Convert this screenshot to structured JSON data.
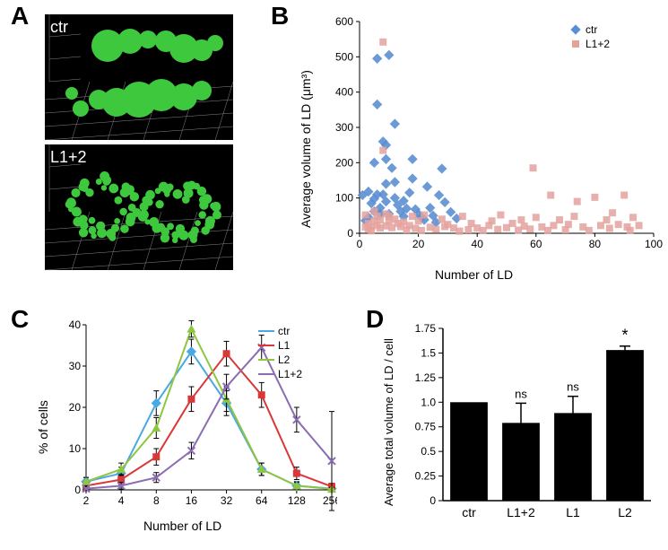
{
  "panelA": {
    "label": "A",
    "images": [
      {
        "label": "ctr"
      },
      {
        "label": "L1+2"
      }
    ]
  },
  "panelB": {
    "label": "B",
    "type": "scatter",
    "xlabel": "Number of LD",
    "ylabel": "Average volume of LD (μm³)",
    "xlim": [
      0,
      100
    ],
    "xtick_step": 20,
    "ylim": [
      0,
      600
    ],
    "ytick_step": 100,
    "background_color": "#ffffff",
    "series": [
      {
        "name": "ctr",
        "marker": "diamond",
        "color": "#5b8fd1",
        "size": 7,
        "points": [
          [
            1,
            108
          ],
          [
            2,
            36
          ],
          [
            3,
            118
          ],
          [
            3,
            45
          ],
          [
            4,
            85
          ],
          [
            5,
            62
          ],
          [
            5,
            200
          ],
          [
            5,
            98
          ],
          [
            6,
            495
          ],
          [
            6,
            110
          ],
          [
            6,
            365
          ],
          [
            7,
            72
          ],
          [
            7,
            55
          ],
          [
            8,
            110
          ],
          [
            8,
            260
          ],
          [
            9,
            90
          ],
          [
            9,
            140
          ],
          [
            9,
            250
          ],
          [
            9,
            210
          ],
          [
            10,
            505
          ],
          [
            10,
            55
          ],
          [
            11,
            185
          ],
          [
            12,
            145
          ],
          [
            12,
            310
          ],
          [
            12,
            100
          ],
          [
            13,
            80
          ],
          [
            14,
            62
          ],
          [
            15,
            48
          ],
          [
            15,
            92
          ],
          [
            16,
            70
          ],
          [
            17,
            115
          ],
          [
            18,
            210
          ],
          [
            18,
            155
          ],
          [
            19,
            68
          ],
          [
            20,
            55
          ],
          [
            21,
            45
          ],
          [
            22,
            38
          ],
          [
            23,
            132
          ],
          [
            24,
            72
          ],
          [
            25,
            50
          ],
          [
            26,
            31
          ],
          [
            27,
            108
          ],
          [
            28,
            183
          ],
          [
            29,
            88
          ],
          [
            31,
            60
          ],
          [
            33,
            42
          ]
        ]
      },
      {
        "name": "L1+2",
        "marker": "square",
        "color": "#e4a29d",
        "size": 7,
        "points": [
          [
            2,
            18
          ],
          [
            2,
            52
          ],
          [
            3,
            28
          ],
          [
            3,
            11
          ],
          [
            4,
            18
          ],
          [
            4,
            7
          ],
          [
            5,
            35
          ],
          [
            5,
            62
          ],
          [
            6,
            22
          ],
          [
            6,
            48
          ],
          [
            7,
            38
          ],
          [
            7,
            15
          ],
          [
            8,
            542
          ],
          [
            8,
            235
          ],
          [
            9,
            21
          ],
          [
            9,
            55
          ],
          [
            10,
            35
          ],
          [
            10,
            48
          ],
          [
            11,
            16
          ],
          [
            12,
            40
          ],
          [
            13,
            28
          ],
          [
            14,
            19
          ],
          [
            15,
            32
          ],
          [
            16,
            10
          ],
          [
            17,
            22
          ],
          [
            18,
            48
          ],
          [
            19,
            14
          ],
          [
            20,
            35
          ],
          [
            21,
            8
          ],
          [
            22,
            52
          ],
          [
            24,
            17
          ],
          [
            26,
            11
          ],
          [
            28,
            40
          ],
          [
            29,
            19
          ],
          [
            30,
            25
          ],
          [
            32,
            15
          ],
          [
            34,
            6
          ],
          [
            35,
            48
          ],
          [
            37,
            10
          ],
          [
            38,
            28
          ],
          [
            40,
            15
          ],
          [
            42,
            8
          ],
          [
            44,
            22
          ],
          [
            45,
            35
          ],
          [
            47,
            11
          ],
          [
            48,
            52
          ],
          [
            50,
            16
          ],
          [
            52,
            28
          ],
          [
            54,
            9
          ],
          [
            55,
            38
          ],
          [
            56,
            20
          ],
          [
            58,
            12
          ],
          [
            59,
            185
          ],
          [
            60,
            45
          ],
          [
            62,
            18
          ],
          [
            64,
            8
          ],
          [
            65,
            108
          ],
          [
            66,
            22
          ],
          [
            68,
            38
          ],
          [
            70,
            10
          ],
          [
            71,
            25
          ],
          [
            73,
            48
          ],
          [
            74,
            90
          ],
          [
            76,
            18
          ],
          [
            78,
            8
          ],
          [
            80,
            102
          ],
          [
            82,
            22
          ],
          [
            84,
            38
          ],
          [
            85,
            14
          ],
          [
            86,
            58
          ],
          [
            88,
            25
          ],
          [
            90,
            108
          ],
          [
            91,
            18
          ],
          [
            92,
            8
          ],
          [
            93,
            45
          ],
          [
            95,
            22
          ]
        ]
      }
    ]
  },
  "panelC": {
    "label": "C",
    "type": "line",
    "xlabel": "Number of LD",
    "ylabel": "% of cells",
    "x_categories": [
      "2",
      "4",
      "8",
      "16",
      "32",
      "64",
      "128",
      "256"
    ],
    "ylim": [
      0,
      40
    ],
    "ytick_step": 10,
    "background_color": "#ffffff",
    "series": [
      {
        "name": "ctr",
        "color": "#4aa9e5",
        "marker": "diamond",
        "values": [
          2,
          4,
          21,
          33.5,
          21,
          5,
          1,
          0.3
        ],
        "errors": [
          1,
          1.5,
          3,
          3,
          3,
          1.5,
          1,
          0.5
        ]
      },
      {
        "name": "L1",
        "color": "#d93838",
        "marker": "square",
        "values": [
          1,
          2.5,
          8,
          22,
          33,
          23,
          4,
          0.8
        ],
        "errors": [
          0.8,
          1.2,
          2,
          3,
          3,
          3,
          1.5,
          0.8
        ]
      },
      {
        "name": "L2",
        "color": "#8fc63f",
        "marker": "triangle",
        "values": [
          2,
          5,
          15,
          39,
          22,
          5,
          1,
          0.2
        ],
        "errors": [
          1,
          1.5,
          2.5,
          2,
          3,
          1.5,
          0.8,
          0.4
        ]
      },
      {
        "name": "L1+2",
        "color": "#8b6db2",
        "marker": "x",
        "values": [
          0.3,
          1,
          3,
          9.5,
          25,
          34.5,
          17,
          7
        ],
        "errors": [
          0.5,
          0.8,
          1.2,
          2,
          3,
          3,
          3,
          12
        ]
      }
    ]
  },
  "panelD": {
    "label": "D",
    "type": "bar",
    "ylabel": "Average total volume of LD / cell",
    "categories": [
      "ctr",
      "L1+2",
      "L1",
      "L2"
    ],
    "ylim": [
      0,
      1.75
    ],
    "ytick_step": 0.25,
    "bar_color": "#000000",
    "values": [
      1.0,
      0.79,
      0.89,
      1.53
    ],
    "errors": [
      0,
      0.2,
      0.17,
      0.04
    ],
    "annotations": [
      "",
      "ns",
      "ns",
      "*"
    ]
  }
}
